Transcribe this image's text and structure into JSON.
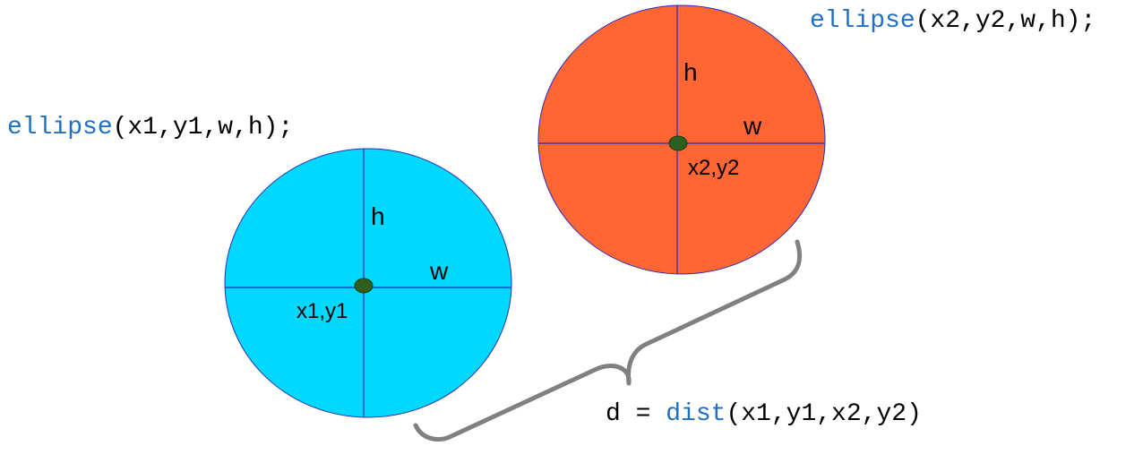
{
  "code_ellipse_1": {
    "fn": "ellipse",
    "args": "(x1,y1,w,h);"
  },
  "code_ellipse_2": {
    "fn": "ellipse",
    "args": "(x2,y2,w,h);"
  },
  "code_dist": {
    "prefix": "d = ",
    "fn": "dist",
    "args": "(x1,y1,x2,y2)"
  },
  "circle_1": {
    "color": "#00d8ff",
    "h_label": "h",
    "w_label": "w",
    "center_label": "x1,y1"
  },
  "circle_2": {
    "color": "#ff6633",
    "h_label": "h",
    "w_label": "w",
    "center_label": "x2,y2"
  },
  "center_dot_color": "#2e5f1e",
  "brace_color": "#808080"
}
